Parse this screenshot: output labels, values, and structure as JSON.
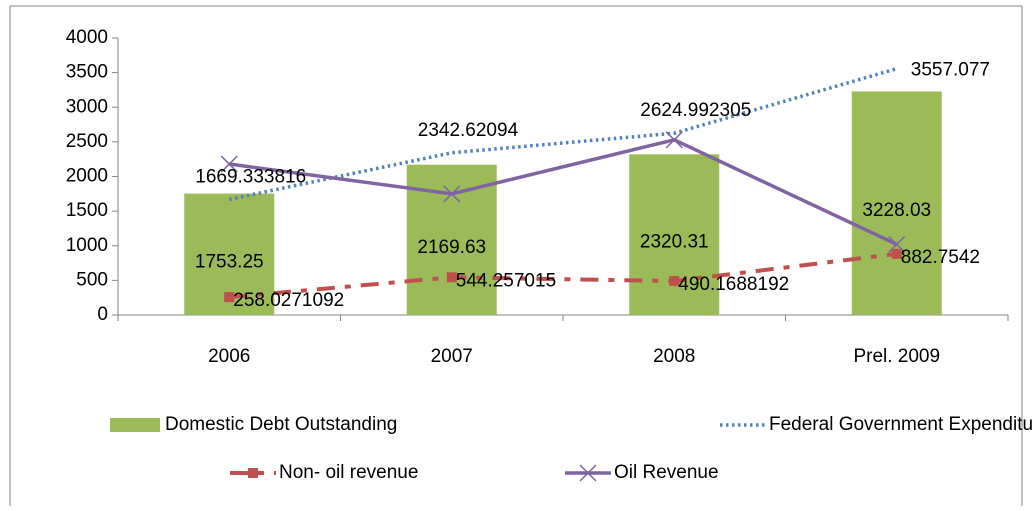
{
  "chart_data": {
    "type": "bar_line",
    "categories": [
      "2006",
      "2007",
      "2008",
      "Prel. 2009"
    ],
    "series": [
      {
        "name": "Domestic Debt Outstanding",
        "type": "bar",
        "color": "#9bbb59",
        "values": [
          1753.25,
          2169.63,
          2320.31,
          3228.03
        ]
      },
      {
        "name": "Federal Government Expenditure",
        "type": "line",
        "style": "dotted",
        "color": "#4f81bd",
        "values": [
          1669.333816,
          2342.62094,
          2624.992305,
          3557.077
        ]
      },
      {
        "name": "Non- oil revenue",
        "type": "line",
        "style": "dash-dot",
        "color": "#c0504d",
        "values": [
          258.0271092,
          544.257015,
          490.1688192,
          882.7542
        ]
      },
      {
        "name": "Oil Revenue",
        "type": "line",
        "style": "solid-x",
        "color": "#8064a2",
        "values": [
          2180,
          1750,
          2530,
          1020
        ]
      }
    ],
    "data_labels": [
      true,
      true,
      true,
      false
    ],
    "ylim": [
      0,
      4000
    ],
    "yticks": [
      0,
      500,
      1000,
      1500,
      2000,
      2500,
      3000,
      3500,
      4000
    ],
    "grid": false,
    "legend": "bottom"
  }
}
